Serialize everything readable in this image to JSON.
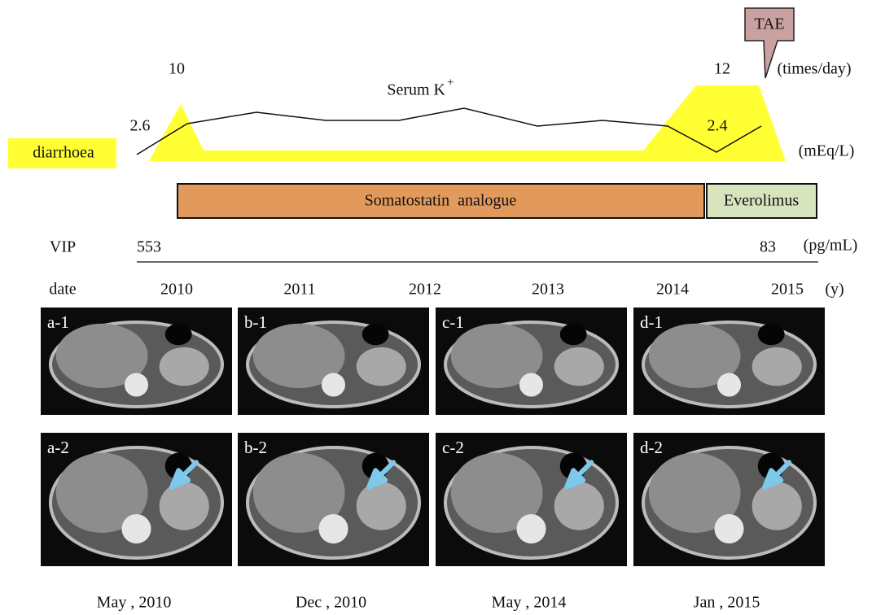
{
  "callout": "TAE",
  "diarrhoea": {
    "label": "diarrhoea",
    "start": "10",
    "end": "12",
    "unit": "(times/day)"
  },
  "serum_k": {
    "label": "Serum K",
    "superscript": "+",
    "start": "2.6",
    "end": "2.4",
    "unit": "(mEq/L)"
  },
  "treatments": [
    "Somatostatin  analogue",
    "Everolimus"
  ],
  "vip": {
    "label": "VIP",
    "start": "553",
    "end": "83",
    "unit": "(pg/mL)"
  },
  "date": {
    "label": "date",
    "years": [
      "2010",
      "2011",
      "2012",
      "2013",
      "2014",
      "2015"
    ],
    "unit": "(y)"
  },
  "images": {
    "row1": [
      "a-1",
      "b-1",
      "c-1",
      "d-1"
    ],
    "row2": [
      "a-2",
      "b-2",
      "c-2",
      "d-2"
    ],
    "captions": [
      "May , 2010",
      "Dec , 2010",
      "May , 2014",
      "Jan , 2015"
    ]
  }
}
